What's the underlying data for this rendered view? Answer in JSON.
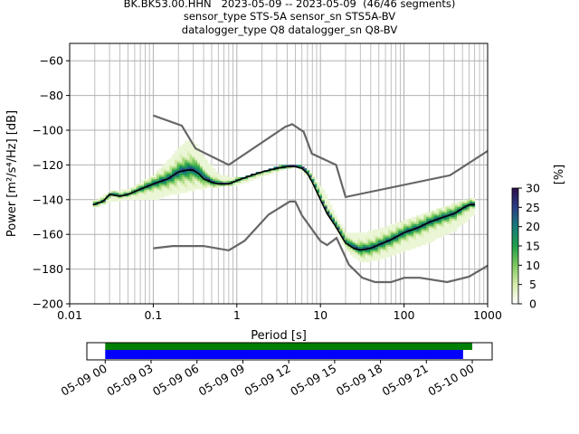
{
  "title": {
    "line1": "BK.BK53.00.HHN   2023-05-09 -- 2023-05-09  (46/46 segments)",
    "line2": "sensor_type STS-5A sensor_sn STS5A-BV",
    "line3": "datalogger_type Q8 datalogger_sn Q8-BV"
  },
  "chart_data": {
    "type": "heatmap",
    "xlabel": "Period [s]",
    "ylabel": "Power [m²/s⁴/Hz] [dB]",
    "xscale": "log",
    "xlim": [
      0.01,
      1000
    ],
    "ylim": [
      -200,
      -50
    ],
    "xticks": [
      {
        "value": 0.01,
        "label": "0.01"
      },
      {
        "value": 0.1,
        "label": "0.1"
      },
      {
        "value": 1,
        "label": "1"
      },
      {
        "value": 10,
        "label": "10"
      },
      {
        "value": 100,
        "label": "100"
      },
      {
        "value": 1000,
        "label": "1000"
      }
    ],
    "yticks": [
      -200,
      -180,
      -160,
      -140,
      -120,
      -100,
      -80,
      -60
    ],
    "grid": true,
    "colorbar": {
      "label": "[%]",
      "range": [
        0,
        30
      ],
      "ticks": [
        0,
        5,
        10,
        15,
        20,
        25,
        30
      ],
      "colors": [
        "#ffffff",
        "#d6ecab",
        "#7ec85e",
        "#1f9e4b",
        "#177c7a",
        "#2a3e86",
        "#2b0e4a"
      ]
    },
    "mode_curve": {
      "name": "mode",
      "color": "#000000",
      "x": [
        0.019,
        0.025,
        0.03,
        0.04,
        0.05,
        0.07,
        0.1,
        0.15,
        0.2,
        0.25,
        0.3,
        0.35,
        0.4,
        0.5,
        0.6,
        0.8,
        1,
        1.5,
        2,
        3,
        4,
        5,
        6,
        7,
        8,
        10,
        12,
        15,
        20,
        25,
        30,
        40,
        50,
        70,
        100,
        150,
        200,
        300,
        400,
        500,
        600,
        700
      ],
      "y": [
        -143,
        -141,
        -137,
        -138,
        -137,
        -134,
        -131,
        -128,
        -124,
        -123,
        -123,
        -125,
        -128,
        -130,
        -131,
        -131,
        -129,
        -126,
        -124,
        -122,
        -121,
        -121,
        -122,
        -125,
        -130,
        -140,
        -148,
        -155,
        -165,
        -168,
        -169,
        -168,
        -166,
        -163,
        -159,
        -156,
        -153,
        -150,
        -148,
        -145,
        -143,
        -143
      ]
    },
    "pdf_band": {
      "x": [
        0.019,
        0.03,
        0.05,
        0.1,
        0.15,
        0.2,
        0.25,
        0.3,
        0.4,
        0.6,
        1,
        2,
        3,
        5,
        7,
        10,
        15,
        20,
        30,
        50,
        100,
        200,
        400,
        700
      ],
      "upper": [
        -141,
        -136,
        -134,
        -126,
        -117,
        -110,
        -106,
        -107,
        -117,
        -126,
        -128,
        -124,
        -121,
        -120,
        -123,
        -133,
        -150,
        -160,
        -160,
        -157,
        -152,
        -147,
        -142,
        -139
      ],
      "lower": [
        -145,
        -142,
        -140,
        -141,
        -138,
        -137,
        -136,
        -135,
        -134,
        -133,
        -132,
        -127,
        -124,
        -121,
        -128,
        -142,
        -158,
        -170,
        -177,
        -175,
        -170,
        -165,
        -158,
        -148
      ]
    },
    "noise_models": [
      {
        "name": "NHNM",
        "color": "#666666",
        "x": [
          0.1,
          0.22,
          0.32,
          0.8,
          3.8,
          4.6,
          6.3,
          7.9,
          15.4,
          20,
          354.8,
          1000
        ],
        "y": [
          -91.5,
          -97.4,
          -110.5,
          -120,
          -98,
          -96.5,
          -101,
          -113.5,
          -120,
          -138.5,
          -126,
          -112
        ]
      },
      {
        "name": "NLNM",
        "color": "#666666",
        "x": [
          0.1,
          0.17,
          0.4,
          0.8,
          1.24,
          2.4,
          4.3,
          5,
          6,
          10,
          12,
          15.6,
          21.9,
          31.6,
          45,
          70,
          101,
          154,
          328,
          600,
          1000
        ],
        "y": [
          -168,
          -166.7,
          -166.7,
          -169.2,
          -163.7,
          -148.6,
          -141.1,
          -141.1,
          -149,
          -163.8,
          -166.2,
          -162.1,
          -177.5,
          -185,
          -187.5,
          -187.5,
          -185,
          -185,
          -187.5,
          -184.4,
          -178
        ]
      }
    ]
  },
  "coverage": {
    "xticks": [
      "05-09 00",
      "05-09 03",
      "05-09 06",
      "05-09 09",
      "05-09 12",
      "05-09 15",
      "05-09 18",
      "05-09 21",
      "05-10 00"
    ],
    "range_hours": [
      -1.2,
      25.3
    ],
    "bars": [
      {
        "name": "data coverage",
        "color": "#008000",
        "start_h": 0,
        "end_h": 24
      },
      {
        "name": "psd segments",
        "color": "#0000ff",
        "start_h": 0,
        "end_h": 23.4
      }
    ]
  }
}
